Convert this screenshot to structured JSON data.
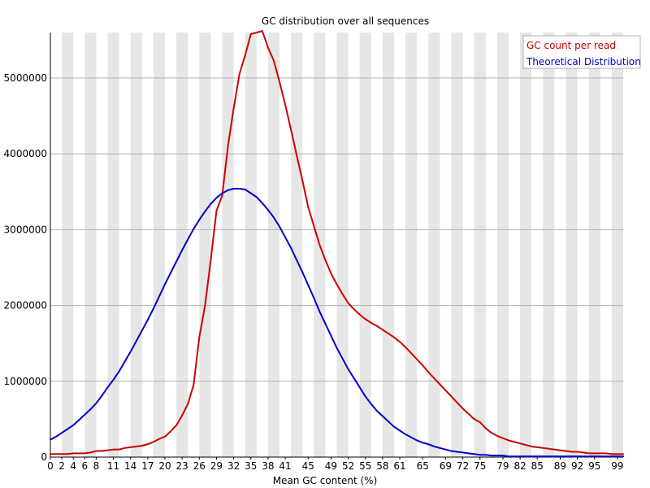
{
  "chart_data": {
    "type": "line",
    "title": "GC distribution over all sequences",
    "xlabel": "Mean GC content (%)",
    "ylabel": "",
    "xlim": [
      0,
      100
    ],
    "ylim": [
      0,
      5600000
    ],
    "x_ticks": [
      0,
      2,
      4,
      6,
      8,
      11,
      14,
      17,
      20,
      23,
      26,
      29,
      32,
      35,
      38,
      41,
      45,
      49,
      52,
      55,
      58,
      61,
      65,
      69,
      72,
      75,
      79,
      82,
      85,
      89,
      92,
      95,
      99
    ],
    "y_ticks": [
      0,
      1000000,
      2000000,
      3000000,
      4000000,
      5000000
    ],
    "y_tick_labels": [
      "0",
      "1000000",
      "2000000",
      "3000000",
      "4000000",
      "5000000"
    ],
    "grid": {
      "horizontal": true,
      "alternating_vertical_bands": true
    },
    "legend": {
      "position": "top-right"
    },
    "colors": {
      "band": "#e6e6e6",
      "grid": "#b0b0b0",
      "axis": "#000000"
    },
    "series": [
      {
        "name": "GC count per read",
        "color": "#cc0000",
        "points": [
          [
            0,
            40000
          ],
          [
            1,
            40000
          ],
          [
            2,
            40000
          ],
          [
            3,
            40000
          ],
          [
            4,
            50000
          ],
          [
            5,
            50000
          ],
          [
            6,
            50000
          ],
          [
            7,
            60000
          ],
          [
            8,
            80000
          ],
          [
            9,
            80000
          ],
          [
            10,
            90000
          ],
          [
            11,
            100000
          ],
          [
            12,
            100000
          ],
          [
            13,
            120000
          ],
          [
            14,
            130000
          ],
          [
            15,
            140000
          ],
          [
            16,
            150000
          ],
          [
            17,
            170000
          ],
          [
            18,
            200000
          ],
          [
            19,
            240000
          ],
          [
            20,
            270000
          ],
          [
            21,
            340000
          ],
          [
            22,
            420000
          ],
          [
            23,
            550000
          ],
          [
            24,
            700000
          ],
          [
            25,
            950000
          ],
          [
            26,
            1580000
          ],
          [
            27,
            2000000
          ],
          [
            28,
            2600000
          ],
          [
            29,
            3250000
          ],
          [
            30,
            3450000
          ],
          [
            31,
            4100000
          ],
          [
            32,
            4600000
          ],
          [
            33,
            5050000
          ],
          [
            34,
            5300000
          ],
          [
            35,
            5580000
          ],
          [
            36,
            5600000
          ],
          [
            37,
            5620000
          ],
          [
            38,
            5400000
          ],
          [
            39,
            5230000
          ],
          [
            40,
            4950000
          ],
          [
            41,
            4650000
          ],
          [
            42,
            4320000
          ],
          [
            43,
            3980000
          ],
          [
            44,
            3650000
          ],
          [
            45,
            3300000
          ],
          [
            46,
            3050000
          ],
          [
            47,
            2800000
          ],
          [
            48,
            2600000
          ],
          [
            49,
            2420000
          ],
          [
            50,
            2280000
          ],
          [
            51,
            2150000
          ],
          [
            52,
            2030000
          ],
          [
            53,
            1950000
          ],
          [
            54,
            1880000
          ],
          [
            55,
            1820000
          ],
          [
            56,
            1770000
          ],
          [
            57,
            1730000
          ],
          [
            58,
            1680000
          ],
          [
            59,
            1630000
          ],
          [
            60,
            1580000
          ],
          [
            61,
            1520000
          ],
          [
            62,
            1450000
          ],
          [
            63,
            1370000
          ],
          [
            64,
            1290000
          ],
          [
            65,
            1210000
          ],
          [
            66,
            1120000
          ],
          [
            67,
            1040000
          ],
          [
            68,
            960000
          ],
          [
            69,
            880000
          ],
          [
            70,
            800000
          ],
          [
            71,
            720000
          ],
          [
            72,
            640000
          ],
          [
            73,
            570000
          ],
          [
            74,
            500000
          ],
          [
            75,
            460000
          ],
          [
            76,
            380000
          ],
          [
            77,
            320000
          ],
          [
            78,
            280000
          ],
          [
            79,
            250000
          ],
          [
            80,
            220000
          ],
          [
            81,
            200000
          ],
          [
            82,
            180000
          ],
          [
            83,
            160000
          ],
          [
            84,
            140000
          ],
          [
            85,
            130000
          ],
          [
            86,
            120000
          ],
          [
            87,
            110000
          ],
          [
            88,
            100000
          ],
          [
            89,
            90000
          ],
          [
            90,
            80000
          ],
          [
            91,
            70000
          ],
          [
            92,
            70000
          ],
          [
            93,
            60000
          ],
          [
            94,
            50000
          ],
          [
            95,
            50000
          ],
          [
            96,
            50000
          ],
          [
            97,
            50000
          ],
          [
            98,
            40000
          ],
          [
            99,
            40000
          ],
          [
            100,
            40000
          ]
        ]
      },
      {
        "name": "Theoretical Distribution",
        "color": "#0000cc",
        "points": [
          [
            0,
            230000
          ],
          [
            1,
            270000
          ],
          [
            2,
            320000
          ],
          [
            3,
            370000
          ],
          [
            4,
            420000
          ],
          [
            5,
            490000
          ],
          [
            6,
            560000
          ],
          [
            7,
            630000
          ],
          [
            8,
            710000
          ],
          [
            9,
            810000
          ],
          [
            10,
            920000
          ],
          [
            11,
            1020000
          ],
          [
            12,
            1130000
          ],
          [
            13,
            1260000
          ],
          [
            14,
            1390000
          ],
          [
            15,
            1530000
          ],
          [
            16,
            1670000
          ],
          [
            17,
            1810000
          ],
          [
            18,
            1960000
          ],
          [
            19,
            2120000
          ],
          [
            20,
            2280000
          ],
          [
            21,
            2430000
          ],
          [
            22,
            2580000
          ],
          [
            23,
            2730000
          ],
          [
            24,
            2870000
          ],
          [
            25,
            3010000
          ],
          [
            26,
            3130000
          ],
          [
            27,
            3240000
          ],
          [
            28,
            3340000
          ],
          [
            29,
            3420000
          ],
          [
            30,
            3480000
          ],
          [
            31,
            3520000
          ],
          [
            32,
            3540000
          ],
          [
            33,
            3540000
          ],
          [
            34,
            3530000
          ],
          [
            35,
            3480000
          ],
          [
            36,
            3430000
          ],
          [
            37,
            3350000
          ],
          [
            38,
            3260000
          ],
          [
            39,
            3160000
          ],
          [
            40,
            3040000
          ],
          [
            41,
            2900000
          ],
          [
            42,
            2760000
          ],
          [
            43,
            2600000
          ],
          [
            44,
            2440000
          ],
          [
            45,
            2270000
          ],
          [
            46,
            2100000
          ],
          [
            47,
            1920000
          ],
          [
            48,
            1760000
          ],
          [
            49,
            1600000
          ],
          [
            50,
            1440000
          ],
          [
            51,
            1300000
          ],
          [
            52,
            1160000
          ],
          [
            53,
            1040000
          ],
          [
            54,
            920000
          ],
          [
            55,
            800000
          ],
          [
            56,
            700000
          ],
          [
            57,
            610000
          ],
          [
            58,
            540000
          ],
          [
            59,
            470000
          ],
          [
            60,
            400000
          ],
          [
            61,
            350000
          ],
          [
            62,
            300000
          ],
          [
            63,
            260000
          ],
          [
            64,
            220000
          ],
          [
            65,
            190000
          ],
          [
            66,
            170000
          ],
          [
            67,
            140000
          ],
          [
            68,
            120000
          ],
          [
            69,
            100000
          ],
          [
            70,
            80000
          ],
          [
            71,
            70000
          ],
          [
            72,
            60000
          ],
          [
            73,
            50000
          ],
          [
            74,
            40000
          ],
          [
            75,
            30000
          ],
          [
            76,
            30000
          ],
          [
            77,
            20000
          ],
          [
            78,
            20000
          ],
          [
            79,
            20000
          ],
          [
            80,
            10000
          ],
          [
            81,
            10000
          ],
          [
            82,
            10000
          ],
          [
            83,
            10000
          ],
          [
            84,
            10000
          ],
          [
            85,
            10000
          ],
          [
            86,
            10000
          ],
          [
            87,
            10000
          ],
          [
            88,
            10000
          ],
          [
            89,
            10000
          ],
          [
            90,
            10000
          ],
          [
            91,
            10000
          ],
          [
            92,
            10000
          ],
          [
            93,
            10000
          ],
          [
            94,
            10000
          ],
          [
            95,
            10000
          ],
          [
            96,
            10000
          ],
          [
            97,
            10000
          ],
          [
            98,
            10000
          ],
          [
            99,
            10000
          ],
          [
            100,
            10000
          ]
        ]
      }
    ]
  }
}
